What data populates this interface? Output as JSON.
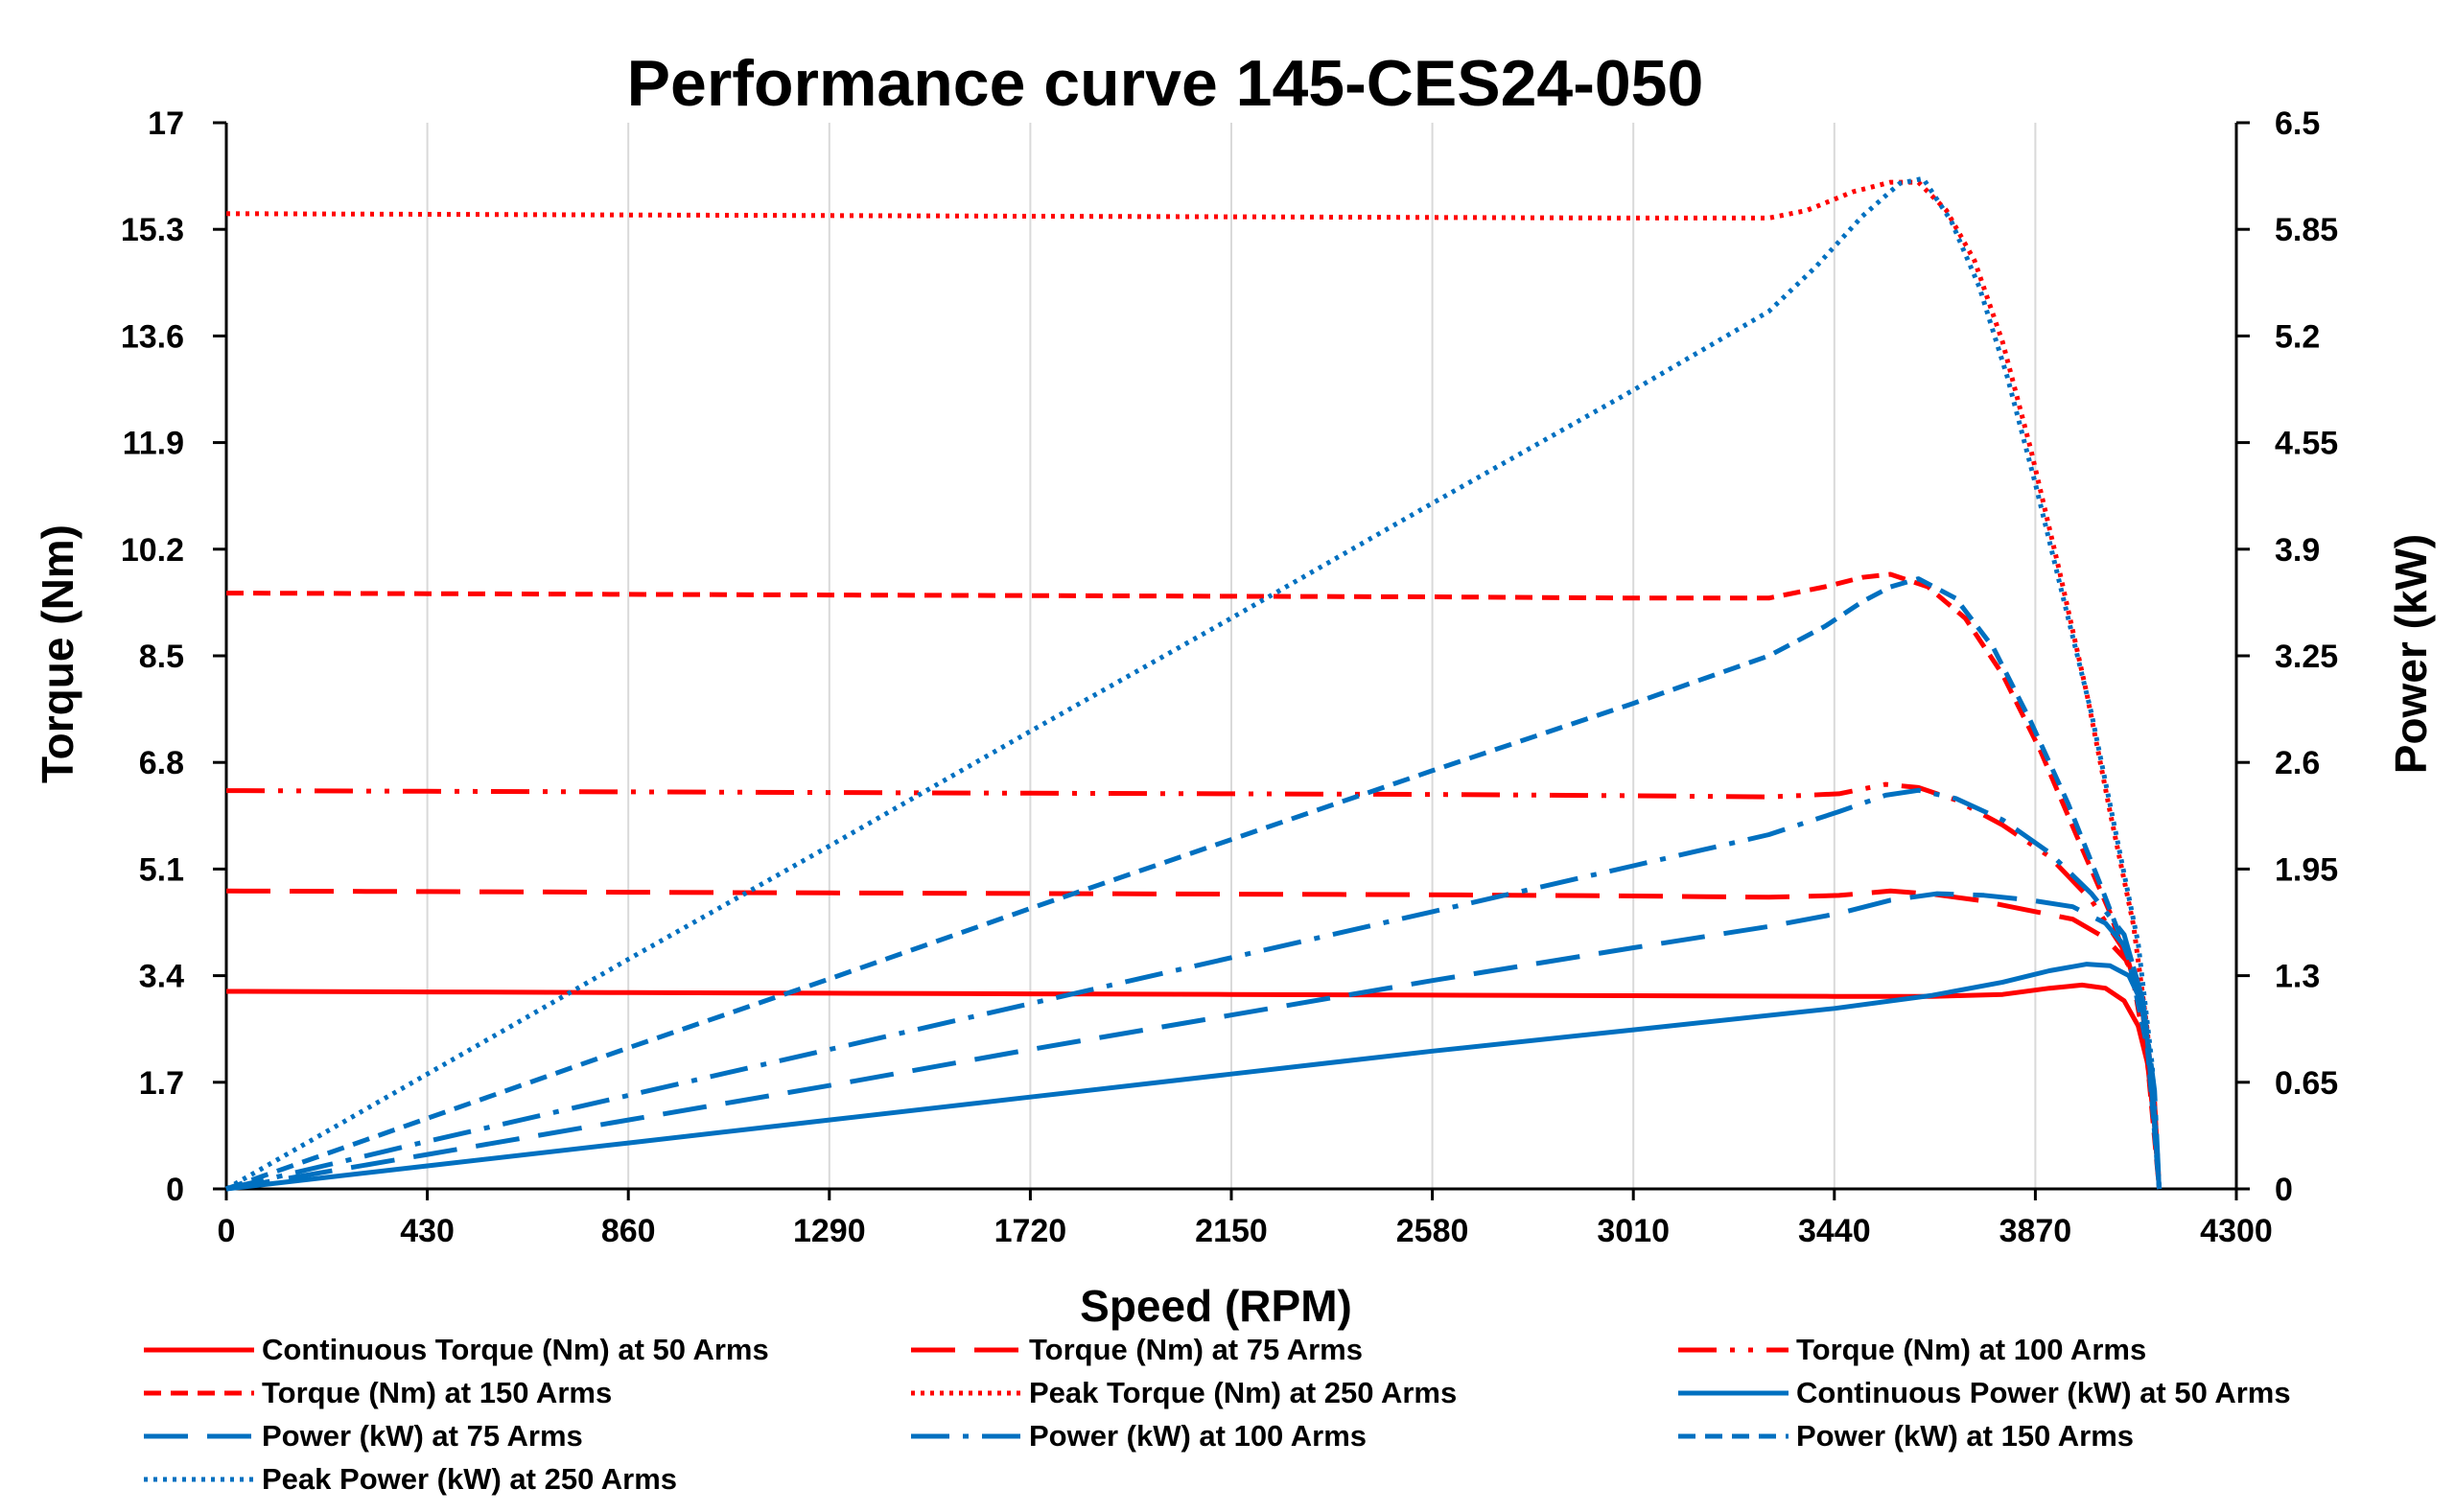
{
  "chart_data": {
    "type": "line",
    "title": "Performance curve 145-CES24-050",
    "xlabel": "Speed (RPM)",
    "ylabel": "Torque (Nm)",
    "y2label": "Power (kW)",
    "xlim": [
      0,
      4300
    ],
    "ylim": [
      0,
      17
    ],
    "y2lim": [
      0,
      6.5
    ],
    "x_ticks": [
      "0",
      "430",
      "860",
      "1290",
      "1720",
      "2150",
      "2580",
      "3010",
      "3440",
      "3870",
      "4300"
    ],
    "y_ticks": [
      "0",
      "1.7",
      "3.4",
      "5.1",
      "6.8",
      "8.5",
      "10.2",
      "11.9",
      "13.6",
      "15.3",
      "17"
    ],
    "y2_ticks": [
      "0",
      "0.65",
      "1.3",
      "1.95",
      "2.6",
      "3.25",
      "3.9",
      "4.55",
      "5.2",
      "5.85",
      "6.5"
    ],
    "grid": "vertical",
    "legend_position": "bottom",
    "colors": {
      "torque": "#ff0000",
      "power": "#0070c0"
    },
    "series": [
      {
        "name": "Continuous Torque (Nm) at 50 Arms",
        "axis": "left",
        "color": "#ff0000",
        "dash": "solid",
        "points": [
          [
            0,
            3.15
          ],
          [
            430,
            3.14
          ],
          [
            860,
            3.13
          ],
          [
            1290,
            3.12
          ],
          [
            1720,
            3.11
          ],
          [
            2150,
            3.1
          ],
          [
            2580,
            3.09
          ],
          [
            3010,
            3.08
          ],
          [
            3440,
            3.07
          ],
          [
            3650,
            3.07
          ],
          [
            3800,
            3.1
          ],
          [
            3900,
            3.2
          ],
          [
            3970,
            3.25
          ],
          [
            4020,
            3.2
          ],
          [
            4060,
            3.0
          ],
          [
            4090,
            2.6
          ],
          [
            4110,
            2.0
          ],
          [
            4125,
            1.0
          ],
          [
            4135,
            0
          ]
        ]
      },
      {
        "name": "Torque (Nm) at 75 Arms",
        "axis": "left",
        "color": "#ff0000",
        "dash": "longdash",
        "points": [
          [
            0,
            4.75
          ],
          [
            430,
            4.74
          ],
          [
            860,
            4.73
          ],
          [
            1290,
            4.72
          ],
          [
            1720,
            4.71
          ],
          [
            2150,
            4.7
          ],
          [
            2580,
            4.69
          ],
          [
            3010,
            4.67
          ],
          [
            3300,
            4.65
          ],
          [
            3450,
            4.68
          ],
          [
            3560,
            4.75
          ],
          [
            3650,
            4.7
          ],
          [
            3750,
            4.6
          ],
          [
            3850,
            4.45
          ],
          [
            3950,
            4.3
          ],
          [
            4020,
            4.0
          ],
          [
            4070,
            3.6
          ],
          [
            4100,
            2.8
          ],
          [
            4120,
            1.5
          ],
          [
            4135,
            0
          ]
        ]
      },
      {
        "name": "Torque (Nm) at 100 Arms",
        "axis": "left",
        "color": "#ff0000",
        "dash": "dashdotdot",
        "points": [
          [
            0,
            6.35
          ],
          [
            430,
            6.34
          ],
          [
            860,
            6.33
          ],
          [
            1290,
            6.32
          ],
          [
            1720,
            6.31
          ],
          [
            2150,
            6.3
          ],
          [
            2580,
            6.29
          ],
          [
            3010,
            6.27
          ],
          [
            3300,
            6.25
          ],
          [
            3450,
            6.3
          ],
          [
            3550,
            6.45
          ],
          [
            3620,
            6.4
          ],
          [
            3700,
            6.2
          ],
          [
            3800,
            5.8
          ],
          [
            3900,
            5.3
          ],
          [
            3990,
            4.6
          ],
          [
            4060,
            3.8
          ],
          [
            4100,
            2.8
          ],
          [
            4125,
            1.4
          ],
          [
            4135,
            0
          ]
        ]
      },
      {
        "name": "Torque (Nm) at 150 Arms",
        "axis": "left",
        "color": "#ff0000",
        "dash": "shortdash",
        "points": [
          [
            0,
            9.5
          ],
          [
            430,
            9.49
          ],
          [
            860,
            9.48
          ],
          [
            1290,
            9.47
          ],
          [
            1720,
            9.46
          ],
          [
            2150,
            9.45
          ],
          [
            2580,
            9.44
          ],
          [
            3010,
            9.42
          ],
          [
            3300,
            9.42
          ],
          [
            3420,
            9.6
          ],
          [
            3500,
            9.75
          ],
          [
            3560,
            9.8
          ],
          [
            3640,
            9.6
          ],
          [
            3720,
            9.1
          ],
          [
            3800,
            8.2
          ],
          [
            3880,
            7.0
          ],
          [
            3960,
            5.6
          ],
          [
            4030,
            4.4
          ],
          [
            4080,
            3.3
          ],
          [
            4110,
            2.0
          ],
          [
            4135,
            0
          ]
        ]
      },
      {
        "name": "Peak Torque (Nm) at 250 Arms",
        "axis": "left",
        "color": "#ff0000",
        "dash": "dotted",
        "points": [
          [
            0,
            15.55
          ],
          [
            430,
            15.54
          ],
          [
            860,
            15.53
          ],
          [
            1290,
            15.52
          ],
          [
            1720,
            15.51
          ],
          [
            2150,
            15.5
          ],
          [
            2580,
            15.49
          ],
          [
            3010,
            15.48
          ],
          [
            3300,
            15.48
          ],
          [
            3380,
            15.6
          ],
          [
            3480,
            15.9
          ],
          [
            3560,
            16.05
          ],
          [
            3620,
            16.05
          ],
          [
            3680,
            15.6
          ],
          [
            3740,
            14.8
          ],
          [
            3800,
            13.5
          ],
          [
            3860,
            11.8
          ],
          [
            3920,
            9.9
          ],
          [
            3980,
            7.9
          ],
          [
            4030,
            6.0
          ],
          [
            4080,
            4.2
          ],
          [
            4110,
            2.5
          ],
          [
            4135,
            0
          ]
        ]
      },
      {
        "name": "Continuous Power (kW) at 50 Arms",
        "axis": "right",
        "color": "#0070c0",
        "dash": "solid",
        "points": [
          [
            0,
            0
          ],
          [
            430,
            0.14
          ],
          [
            860,
            0.28
          ],
          [
            1290,
            0.42
          ],
          [
            1720,
            0.56
          ],
          [
            2150,
            0.7
          ],
          [
            2580,
            0.84
          ],
          [
            3010,
            0.97
          ],
          [
            3440,
            1.1
          ],
          [
            3650,
            1.18
          ],
          [
            3800,
            1.26
          ],
          [
            3900,
            1.33
          ],
          [
            3980,
            1.37
          ],
          [
            4030,
            1.36
          ],
          [
            4070,
            1.3
          ],
          [
            4095,
            1.15
          ],
          [
            4110,
            0.9
          ],
          [
            4122,
            0.5
          ],
          [
            4130,
            0.2
          ],
          [
            4135,
            0
          ]
        ]
      },
      {
        "name": "Power (kW) at 75 Arms",
        "axis": "right",
        "color": "#0070c0",
        "dash": "longdash",
        "points": [
          [
            0,
            0
          ],
          [
            430,
            0.21
          ],
          [
            860,
            0.42
          ],
          [
            1290,
            0.63
          ],
          [
            1720,
            0.85
          ],
          [
            2150,
            1.06
          ],
          [
            2580,
            1.27
          ],
          [
            3010,
            1.47
          ],
          [
            3300,
            1.6
          ],
          [
            3450,
            1.68
          ],
          [
            3560,
            1.76
          ],
          [
            3660,
            1.8
          ],
          [
            3760,
            1.79
          ],
          [
            3860,
            1.76
          ],
          [
            3950,
            1.72
          ],
          [
            4020,
            1.62
          ],
          [
            4070,
            1.45
          ],
          [
            4100,
            1.15
          ],
          [
            4120,
            0.65
          ],
          [
            4135,
            0
          ]
        ]
      },
      {
        "name": "Power (kW) at 100 Arms",
        "axis": "right",
        "color": "#0070c0",
        "dash": "dashdot",
        "points": [
          [
            0,
            0
          ],
          [
            430,
            0.29
          ],
          [
            860,
            0.57
          ],
          [
            1290,
            0.85
          ],
          [
            1720,
            1.13
          ],
          [
            2150,
            1.41
          ],
          [
            2580,
            1.69
          ],
          [
            3010,
            1.97
          ],
          [
            3300,
            2.16
          ],
          [
            3450,
            2.3
          ],
          [
            3550,
            2.4
          ],
          [
            3620,
            2.43
          ],
          [
            3700,
            2.38
          ],
          [
            3800,
            2.25
          ],
          [
            3900,
            2.05
          ],
          [
            3990,
            1.8
          ],
          [
            4060,
            1.55
          ],
          [
            4100,
            1.15
          ],
          [
            4125,
            0.6
          ],
          [
            4135,
            0
          ]
        ]
      },
      {
        "name": "Power (kW) at 150 Arms",
        "axis": "right",
        "color": "#0070c0",
        "dash": "shortdash",
        "points": [
          [
            0,
            0
          ],
          [
            430,
            0.43
          ],
          [
            860,
            0.86
          ],
          [
            1290,
            1.28
          ],
          [
            1720,
            1.71
          ],
          [
            2150,
            2.13
          ],
          [
            2580,
            2.55
          ],
          [
            3010,
            2.96
          ],
          [
            3300,
            3.25
          ],
          [
            3420,
            3.43
          ],
          [
            3500,
            3.58
          ],
          [
            3560,
            3.67
          ],
          [
            3620,
            3.72
          ],
          [
            3700,
            3.6
          ],
          [
            3780,
            3.3
          ],
          [
            3860,
            2.85
          ],
          [
            3940,
            2.35
          ],
          [
            4010,
            1.85
          ],
          [
            4070,
            1.4
          ],
          [
            4110,
            0.85
          ],
          [
            4135,
            0
          ]
        ]
      },
      {
        "name": "Peak Power (kW) at 250 Arms",
        "axis": "right",
        "color": "#0070c0",
        "dash": "dotted",
        "points": [
          [
            0,
            0
          ],
          [
            430,
            0.7
          ],
          [
            860,
            1.4
          ],
          [
            1290,
            2.09
          ],
          [
            1720,
            2.79
          ],
          [
            2150,
            3.48
          ],
          [
            2580,
            4.18
          ],
          [
            3010,
            4.87
          ],
          [
            3300,
            5.35
          ],
          [
            3400,
            5.62
          ],
          [
            3500,
            5.93
          ],
          [
            3580,
            6.13
          ],
          [
            3630,
            6.16
          ],
          [
            3690,
            5.9
          ],
          [
            3750,
            5.5
          ],
          [
            3810,
            4.95
          ],
          [
            3870,
            4.3
          ],
          [
            3930,
            3.6
          ],
          [
            3990,
            2.9
          ],
          [
            4040,
            2.2
          ],
          [
            4090,
            1.5
          ],
          [
            4120,
            0.75
          ],
          [
            4135,
            0
          ]
        ]
      }
    ]
  }
}
